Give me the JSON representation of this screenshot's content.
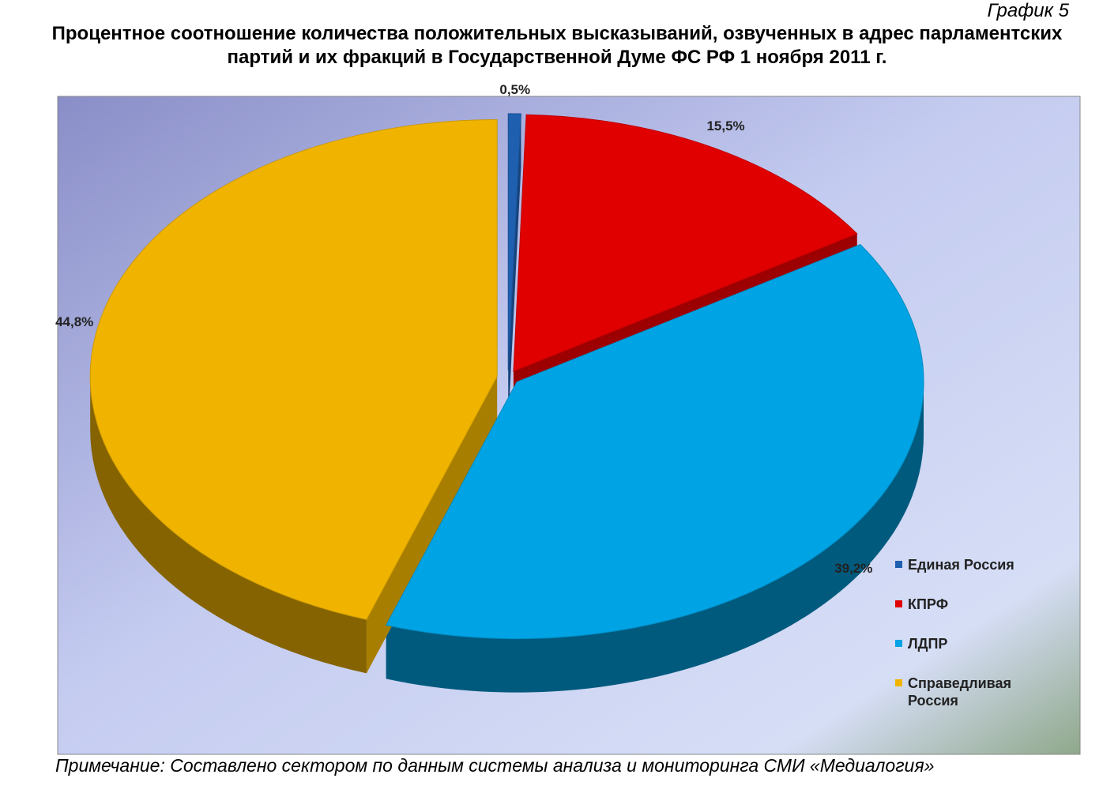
{
  "chart_data": {
    "type": "pie",
    "caption": "График 5",
    "title": "Процентное соотношение количества положительных высказываний, озвученных в адрес парламентских партий и их фракций в Государственной Думе ФС РФ 1 ноября 2011 г.",
    "categories": [
      "Единая Россия",
      "КПРФ",
      "ЛДПР",
      "Справедливая Россия"
    ],
    "values": [
      0.5,
      15.5,
      39.2,
      44.8
    ],
    "value_labels": [
      "0,5%",
      "15,5%",
      "39,2%",
      "44,8%"
    ],
    "colors": [
      "#1f5fb0",
      "#e00000",
      "#00a3e4",
      "#f0b400"
    ],
    "legend": "right",
    "note": "Примечание: Составлено сектором по данным системы анализа и мониторинга СМИ «Медиалогия»"
  }
}
